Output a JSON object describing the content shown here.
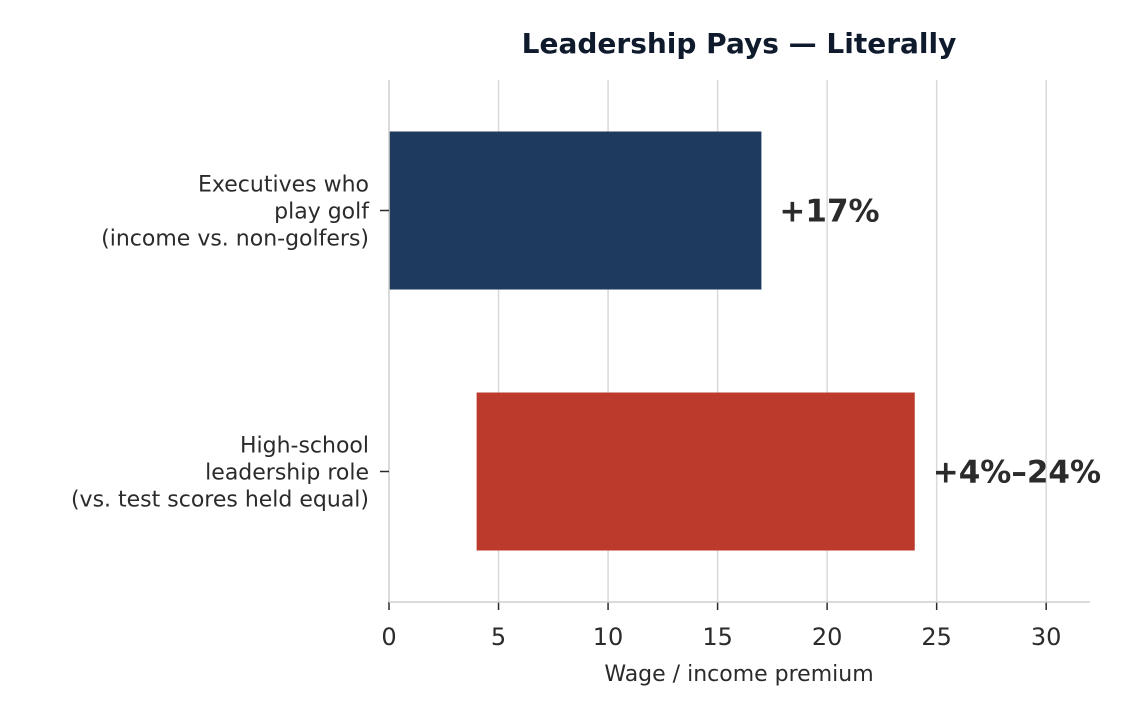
{
  "chart_data": {
    "type": "bar",
    "orientation": "horizontal",
    "title": "Leadership Pays — Literally",
    "xlabel": "Wage / income premium",
    "ylabel": "",
    "xlim": [
      0,
      32
    ],
    "xticks": [
      0,
      5,
      10,
      15,
      20,
      25,
      30
    ],
    "grid": "vertical",
    "bars": [
      {
        "label_lines": [
          "Executives who",
          "play golf",
          "(income vs. non-golfers)"
        ],
        "start": 0,
        "end": 17,
        "value_label": "+17%",
        "color": "#1e3a5c"
      },
      {
        "label_lines": [
          "High-school",
          "leadership role",
          "(vs. test scores held equal)"
        ],
        "start": 4,
        "end": 24,
        "value_label": "+4%–24%",
        "color": "#bb3a2b"
      }
    ]
  }
}
